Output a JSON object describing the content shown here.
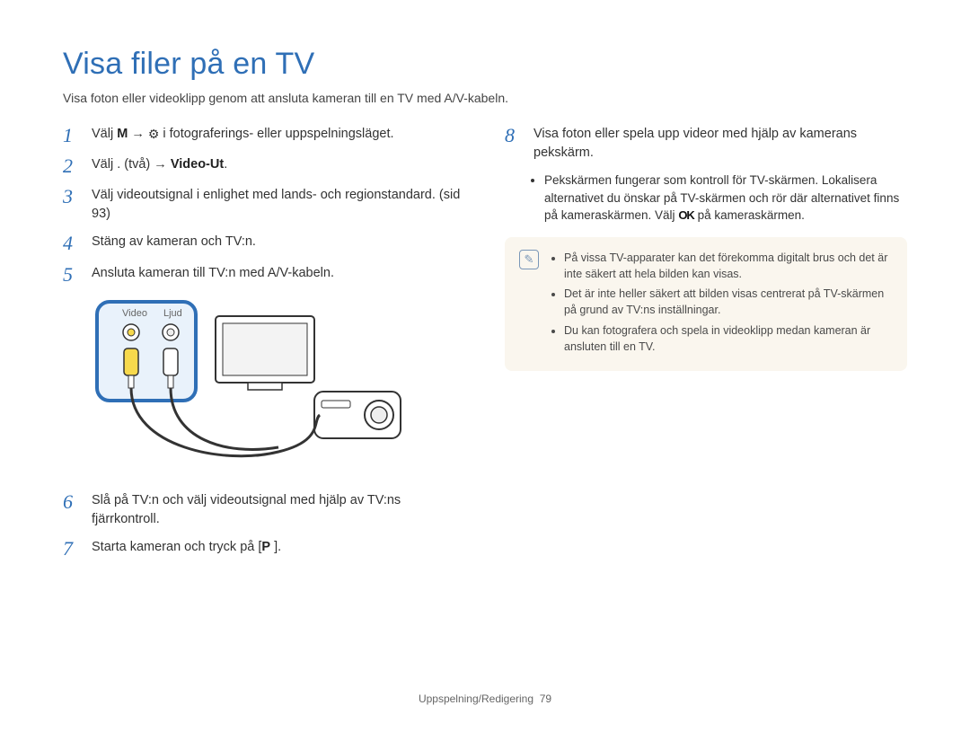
{
  "colors": {
    "accent": "#2f6fb6",
    "text": "#3a3a3a",
    "note_bg": "#faf6ee",
    "note_border_icon": "#7a97b8",
    "diagram_highlight_stroke": "#2f6fb6",
    "diagram_highlight_fill": "#e9f2fb",
    "connector_yellow": "#f7d94c",
    "connector_white": "#ffffff"
  },
  "title": "Visa filer på en TV",
  "intro": "Visa foton eller videoklipp genom att ansluta kameran till en TV med A/V-kabeln.",
  "left_steps": [
    {
      "n": "1",
      "pre": "Välj ",
      "bold1": "M",
      "mid": "   → ",
      "icon": "gear",
      "post": " i fotograferings- eller uppspelningsläget."
    },
    {
      "n": "2",
      "pre": "Välj .   (två) → ",
      "bold1": "Video-Ut",
      "post": "."
    },
    {
      "n": "3",
      "text": "Välj videoutsignal i enlighet med lands- och regionstandard. (sid 93)"
    },
    {
      "n": "4",
      "text": "Stäng av kameran och TV:n."
    },
    {
      "n": "5",
      "text": "Ansluta kameran till TV:n med A/V-kabeln."
    },
    {
      "n": "6",
      "text": "Slå på TV:n och välj videoutsignal med hjälp av TV:ns fjärrkontroll."
    },
    {
      "n": "7",
      "pre": "Starta kameran och tryck på [",
      "bold1": "P",
      "post": "  ]."
    }
  ],
  "diagram_labels": {
    "video": "Video",
    "audio": "Ljud"
  },
  "right_step": {
    "n": "8",
    "text": "Visa foton eller spela upp videor med hjälp av kamerans pekskärm."
  },
  "right_sub_bullets": [
    "Pekskärmen fungerar som kontroll för TV-skärmen. Lokalisera alternativet du önskar på TV-skärmen och rör där alternativet finns på kameraskärmen. Välj OK på kameraskärmen."
  ],
  "note_items": [
    "På vissa TV-apparater kan det förekomma digitalt brus och det är inte säkert att hela bilden kan visas.",
    "Det är inte heller säkert att bilden visas centrerat på TV-skärmen på grund av TV:ns inställningar.",
    "Du kan fotografera och spela in videoklipp medan kameran är ansluten till en TV."
  ],
  "footer": {
    "section": "Uppspelning/Redigering",
    "page": "79"
  }
}
